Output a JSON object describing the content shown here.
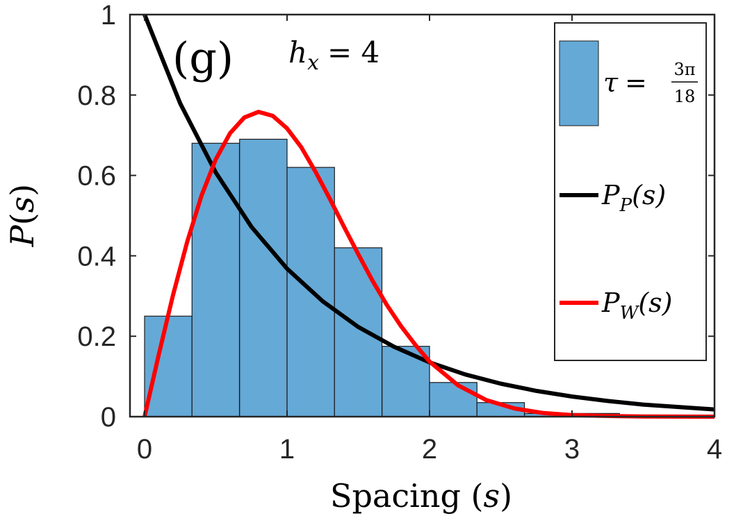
{
  "chart_data": {
    "type": "bar",
    "panel_label": "(g)",
    "annotation": {
      "symbol": "h",
      "subscript": "x",
      "relation": "= 4"
    },
    "xlabel": {
      "text": "Spacing (",
      "var": "s",
      "close": ")"
    },
    "ylabel": {
      "fn": "P",
      "open": "(",
      "var": "s",
      "close": ")"
    },
    "xlim": [
      0,
      4
    ],
    "ylim": [
      0,
      1
    ],
    "x_ticks": [
      "0",
      "1",
      "2",
      "3",
      "4"
    ],
    "y_ticks": [
      "0",
      "0.2",
      "0.4",
      "0.6",
      "0.8",
      "1"
    ],
    "grid": false,
    "legend_position": "top-right",
    "histogram": {
      "bin_width": 0.333,
      "bin_starts": [
        0,
        0.333,
        0.667,
        1.0,
        1.333,
        1.667,
        2.0,
        2.333,
        2.667,
        3.0
      ],
      "values": [
        0.25,
        0.68,
        0.69,
        0.62,
        0.42,
        0.175,
        0.085,
        0.035,
        0.008,
        0.008
      ],
      "color": "#65A9D7",
      "legend": {
        "var": "τ",
        "eq": "=",
        "numerator": "3π",
        "denominator": "18"
      }
    },
    "curves": [
      {
        "id": "poisson",
        "color": "#000000",
        "legend": {
          "fn": "P",
          "sub": "P",
          "arg": "(s)"
        },
        "x": [
          0,
          0.25,
          0.5,
          0.75,
          1,
          1.25,
          1.5,
          1.75,
          2,
          2.25,
          2.5,
          2.75,
          3,
          3.25,
          3.5,
          3.75,
          4
        ],
        "y": [
          1,
          0.779,
          0.607,
          0.472,
          0.368,
          0.287,
          0.223,
          0.174,
          0.135,
          0.105,
          0.082,
          0.064,
          0.05,
          0.039,
          0.03,
          0.024,
          0.018
        ]
      },
      {
        "id": "wigner",
        "color": "#FF0000",
        "legend": {
          "fn": "P",
          "sub": "W",
          "arg": "(s)"
        },
        "x": [
          0,
          0.1,
          0.2,
          0.3,
          0.4,
          0.5,
          0.6,
          0.7,
          0.8,
          0.9,
          1.0,
          1.1,
          1.2,
          1.3,
          1.4,
          1.5,
          1.6,
          1.7,
          1.8,
          1.9,
          2.0,
          2.2,
          2.4,
          2.6,
          2.8,
          3.0,
          3.2,
          3.5,
          4.0
        ],
        "y": [
          0,
          0.155,
          0.303,
          0.436,
          0.55,
          0.64,
          0.705,
          0.744,
          0.758,
          0.748,
          0.717,
          0.67,
          0.609,
          0.542,
          0.472,
          0.404,
          0.338,
          0.278,
          0.225,
          0.179,
          0.137,
          0.078,
          0.041,
          0.02,
          0.009,
          0.004,
          0.002,
          0.0003,
          0
        ]
      }
    ]
  }
}
